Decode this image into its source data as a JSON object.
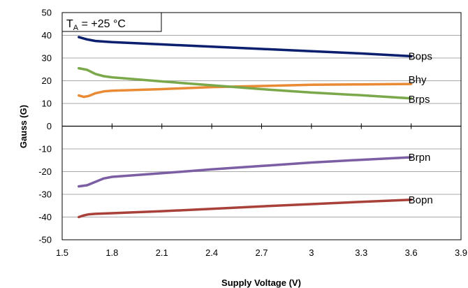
{
  "chart_data": {
    "type": "line",
    "annotation": {
      "main": "T",
      "sub": "A",
      "rest": " = +25 °C"
    },
    "xlabel": "Supply Voltage (V)",
    "ylabel": "Gauss (G)",
    "xlim": [
      1.5,
      3.9
    ],
    "ylim": [
      -50,
      50
    ],
    "xticks": [
      "1.5",
      "1.8",
      "2.1",
      "2.4",
      "2.7",
      "3",
      "3.3",
      "3.6",
      "3.9"
    ],
    "yticks": [
      "50",
      "40",
      "30",
      "20",
      "10",
      "0",
      "-10",
      "-20",
      "-30",
      "-40",
      "-50"
    ],
    "grid": "horizontal",
    "series": [
      {
        "name": "Bops",
        "color": "#0a1f6e",
        "x": [
          1.6,
          1.65,
          1.7,
          1.8,
          2.1,
          2.4,
          2.7,
          3.0,
          3.3,
          3.6
        ],
        "y": [
          39.2,
          38.2,
          37.5,
          37.0,
          36.0,
          35.0,
          34.0,
          33.0,
          32.0,
          30.8
        ]
      },
      {
        "name": "Bhy",
        "color": "#e98a35",
        "x": [
          1.6,
          1.63,
          1.66,
          1.7,
          1.75,
          1.8,
          2.1,
          2.4,
          2.7,
          3.0,
          3.3,
          3.6
        ],
        "y": [
          13.5,
          12.9,
          13.3,
          14.5,
          15.3,
          15.6,
          16.3,
          17.2,
          17.7,
          18.2,
          18.4,
          18.6
        ]
      },
      {
        "name": "Brps",
        "color": "#7aa84a",
        "x": [
          1.6,
          1.65,
          1.7,
          1.75,
          1.8,
          2.1,
          2.4,
          2.7,
          3.0,
          3.3,
          3.6
        ],
        "y": [
          25.5,
          24.8,
          23.0,
          22.0,
          21.5,
          19.7,
          18.0,
          16.3,
          14.8,
          13.6,
          12.2
        ]
      },
      {
        "name": "Brpn",
        "color": "#7b5ea3",
        "x": [
          1.6,
          1.65,
          1.7,
          1.75,
          1.8,
          2.1,
          2.4,
          2.7,
          3.0,
          3.3,
          3.6
        ],
        "y": [
          -26.5,
          -26.0,
          -24.5,
          -23.0,
          -22.3,
          -20.7,
          -19.0,
          -17.5,
          -16.0,
          -14.8,
          -13.7
        ]
      },
      {
        "name": "Bopn",
        "color": "#a8413a",
        "x": [
          1.6,
          1.63,
          1.66,
          1.7,
          1.8,
          2.1,
          2.4,
          2.7,
          3.0,
          3.3,
          3.6
        ],
        "y": [
          -40.0,
          -39.3,
          -38.8,
          -38.6,
          -38.3,
          -37.4,
          -36.4,
          -35.3,
          -34.3,
          -33.3,
          -32.4
        ]
      }
    ]
  }
}
